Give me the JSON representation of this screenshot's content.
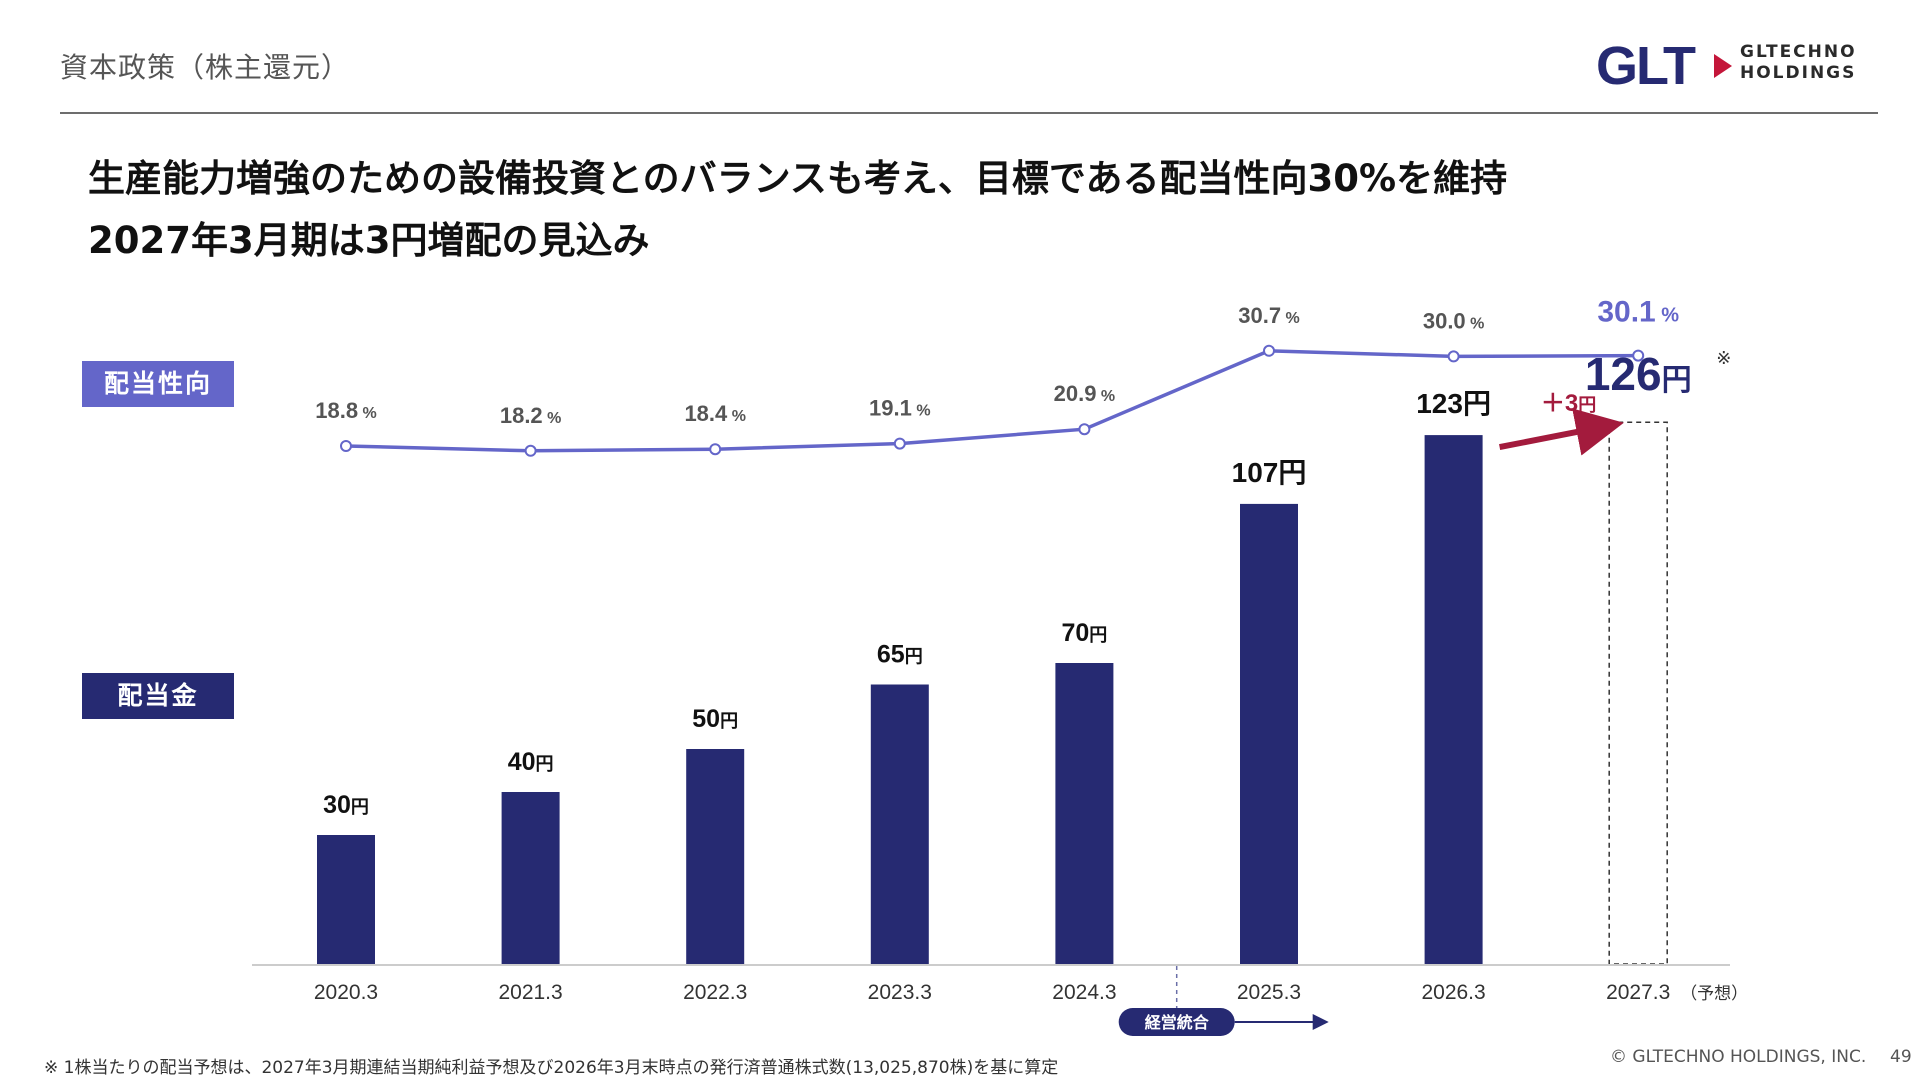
{
  "header": {
    "section_title": "資本政策（株主還元）",
    "logo_mark": "GLT",
    "logo_text_line1": "GLTECHNO",
    "logo_text_line2": "HOLDINGS"
  },
  "headline": {
    "line1": "生産能力増強のための設備投資とのバランスも考え、目標である配当性向30%を維持",
    "line2": "2027年3月期は3円増配の見込み"
  },
  "tags": {
    "payout_ratio": "配当性向",
    "dividend": "配当金"
  },
  "chart_data": {
    "type": "bar",
    "categories": [
      "2020.3",
      "2021.3",
      "2022.3",
      "2023.3",
      "2024.3",
      "2025.3",
      "2026.3",
      "2027.3"
    ],
    "forecast_suffix": "（予想）",
    "series": [
      {
        "name": "配当金",
        "type": "bar",
        "values": [
          30,
          40,
          50,
          65,
          70,
          107,
          123,
          126
        ],
        "labels": [
          "30",
          "40",
          "50",
          "65",
          "70",
          "107",
          "123",
          "126"
        ],
        "unit": "円",
        "color": "#262a72",
        "forecast_index": 7,
        "forecast_mark": "※"
      },
      {
        "name": "配当性向",
        "type": "line",
        "values": [
          18.8,
          18.2,
          18.4,
          19.1,
          20.9,
          30.7,
          30.0,
          30.1
        ],
        "labels": [
          "18.8",
          "18.2",
          "18.4",
          "19.1",
          "20.9",
          "30.7",
          "30.0",
          "30.1"
        ],
        "unit": "%",
        "color": "#6466c9"
      }
    ],
    "increase_annotation": {
      "text": "＋3",
      "unit": "円",
      "color": "#a31b3d"
    },
    "merger_annotation": {
      "text": "経営統合"
    }
  },
  "footer": {
    "footnote": "※ 1株当たりの配当予想は、2027年3月期連結当期純利益予想及び2026年3月末時点の発行済普通株式数(13,025,870株)を基に算定",
    "copyright": "© GLTECHNO HOLDINGS, INC.",
    "page_number": "49"
  },
  "colors": {
    "bar": "#262a72",
    "line": "#6466c9",
    "increase": "#a31b3d",
    "logo_red": "#c4163a"
  }
}
